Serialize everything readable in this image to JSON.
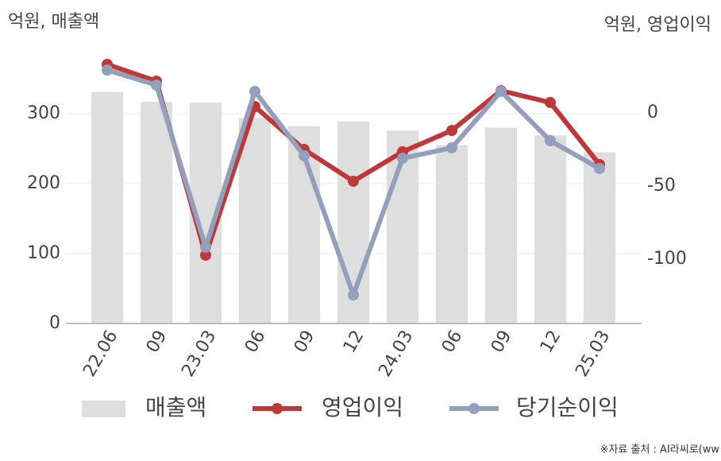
{
  "chart_data": {
    "type": "bar",
    "y_label": "억원, 매출액",
    "y2_label": "억원, 영업이익",
    "source": "※자료 출처 : AI라씨로(ww",
    "categories": [
      "22.06",
      "09",
      "23.03",
      "06",
      "09",
      "12",
      "24.03",
      "06",
      "09",
      "12",
      "25.03"
    ],
    "series": [
      {
        "name": "매출액",
        "type": "bar",
        "color": "#dedede",
        "values": [
          331,
          317,
          316,
          294,
          282,
          289,
          276,
          255,
          280,
          269,
          245
        ]
      },
      {
        "name": "영업이익",
        "type": "line",
        "axis": "y2",
        "color": "#c0373a",
        "values": [
          33.2,
          21.7,
          -97.3,
          4.3,
          -25,
          -46.7,
          -26.6,
          -12,
          15.2,
          7.1,
          -35.3
        ]
      },
      {
        "name": "당기순이익",
        "type": "line",
        "axis": "y2",
        "color": "#93a0bb",
        "values": [
          29.3,
          19,
          -91.8,
          14.7,
          -29.3,
          -124.5,
          -31,
          -23.9,
          14.7,
          -19,
          -38
        ]
      }
    ],
    "ylim": [
      0,
      400
    ],
    "yticks": [
      0,
      100,
      200,
      300
    ],
    "y2lim": [
      -144,
      47.3
    ],
    "y2ticks": [
      0,
      -50,
      -100
    ],
    "grid": true
  }
}
